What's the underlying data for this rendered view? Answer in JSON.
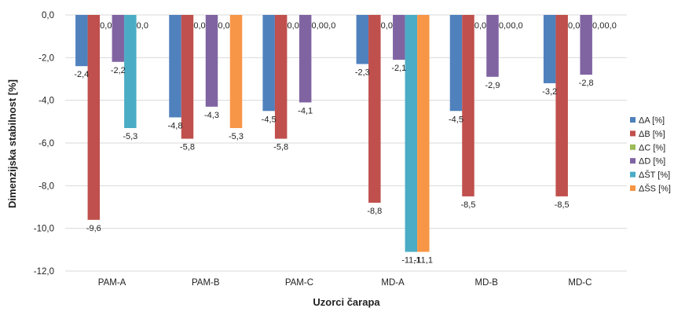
{
  "chart_data": {
    "type": "bar",
    "xlabel": "Uzorci čarapa",
    "ylabel": "Dimenzijska stabilnost [%]",
    "ylim": [
      -12,
      0
    ],
    "yticks": [
      "0,0",
      "-2,0",
      "-4,0",
      "-6,0",
      "-8,0",
      "-10,0",
      "-12,0"
    ],
    "grid": true,
    "legend_position": "right",
    "categories": [
      "PAM-A",
      "PAM-B",
      "PAM-C",
      "MD-A",
      "MD-B",
      "MD-C"
    ],
    "series": [
      {
        "name": "ΔA [%]",
        "color": "#4f81bd",
        "values": [
          -2.4,
          -4.8,
          -4.5,
          -2.3,
          -4.5,
          -3.2
        ]
      },
      {
        "name": "ΔB [%]",
        "color": "#c0504d",
        "values": [
          -9.6,
          -5.8,
          -5.8,
          -8.8,
          -8.5,
          -8.5
        ]
      },
      {
        "name": "ΔC [%]",
        "color": "#9bbb59",
        "values": [
          0.0,
          0.0,
          0.0,
          0.0,
          0.0,
          0.0
        ]
      },
      {
        "name": "ΔD [%]",
        "color": "#8064a2",
        "values": [
          -2.2,
          -4.3,
          -4.1,
          -2.1,
          -2.9,
          -2.8
        ]
      },
      {
        "name": "ΔŠT [%]",
        "color": "#4bacc6",
        "values": [
          -5.3,
          0.0,
          0.0,
          -11.1,
          0.0,
          0.0
        ]
      },
      {
        "name": "ΔŠS [%]",
        "color": "#f79646",
        "values": [
          0.0,
          -5.3,
          0.0,
          -11.1,
          0.0,
          0.0
        ]
      }
    ],
    "data_labels": [
      [
        "-2,4",
        "-9,6",
        "0,0",
        "-2,2",
        "-5,3",
        "0,0"
      ],
      [
        "-4,8",
        "-5,8",
        "0,0",
        "-4,3",
        "0,0",
        "-5,3"
      ],
      [
        "-4,5",
        "-5,8",
        "0,0",
        "-4,1",
        "0,0",
        "0,0"
      ],
      [
        "-2,3",
        "-8,8",
        "0,0",
        "-2,1",
        "-11,1",
        "-11,1"
      ],
      [
        "-4,5",
        "-8,5",
        "0,0",
        "-2,9",
        "0,0",
        "0,0"
      ],
      [
        "-3,2",
        "-8,5",
        "0,0",
        "-2,8",
        "0,0",
        "0,0"
      ]
    ]
  }
}
